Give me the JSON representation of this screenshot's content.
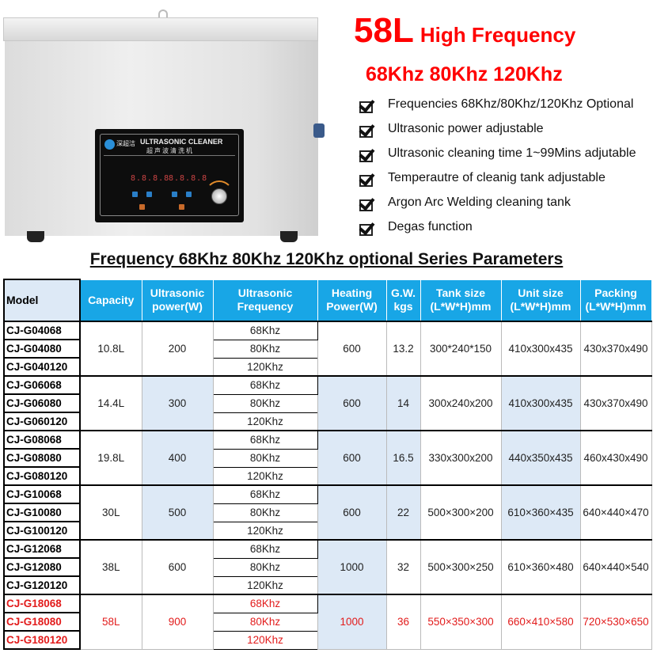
{
  "product": {
    "panel_title": "ULTRASONIC CLEANER",
    "panel_subtitle": "超声波清洗机",
    "brand": "深超洁",
    "accent_color": "#2a8fd8"
  },
  "headline": {
    "capacity": "58L",
    "label": "High Frequency",
    "frequencies": "68Khz 80Khz 120Khz",
    "color": "#ff0000"
  },
  "features": [
    "Frequencies 68Khz/80Khz/120Khz Optional",
    "Ultrasonic power adjustable",
    "Ultrasonic cleaning time 1~99Mins adjutable",
    "Temperautre of cleanig tank adjustable",
    "Argon Arc Welding cleaning tank",
    "Degas function"
  ],
  "section_title": "Frequency 68Khz 80Khz 120Khz optional Series Parameters",
  "table": {
    "header_color": "#18a6e6",
    "shade_color": "#dde9f6",
    "highlight_color": "#e21b1b",
    "columns": [
      "Model",
      "Capacity",
      "Ultrasonic power(W)",
      "Ultrasonic Frequency",
      "Heating Power(W)",
      "G.W. kgs",
      "Tank size (L*W*H)mm",
      "Unit size (L*W*H)mm",
      "Packing (L*W*H)mm"
    ],
    "groups": [
      {
        "models": [
          "CJ-G04068",
          "CJ-G04080",
          "CJ-G040120"
        ],
        "capacity": "10.8L",
        "power": "200",
        "frequencies": [
          "68Khz",
          "80Khz",
          "120Khz"
        ],
        "heating": "600",
        "gw": "13.2",
        "tank": "300*240*150",
        "unit": "410x300x435",
        "packing": "430x370x490",
        "shaded": [],
        "highlight": false
      },
      {
        "models": [
          "CJ-G06068",
          "CJ-G06080",
          "CJ-G060120"
        ],
        "capacity": "14.4L",
        "power": "300",
        "frequencies": [
          "68Khz",
          "80Khz",
          "120Khz"
        ],
        "heating": "600",
        "gw": "14",
        "tank": "300x240x200",
        "unit": "410x300x435",
        "packing": "430x370x490",
        "shaded": [
          "power",
          "heating",
          "gw",
          "unit"
        ],
        "highlight": false
      },
      {
        "models": [
          "CJ-G08068",
          "CJ-G08080",
          "CJ-G080120"
        ],
        "capacity": "19.8L",
        "power": "400",
        "frequencies": [
          "68Khz",
          "80Khz",
          "120Khz"
        ],
        "heating": "600",
        "gw": "16.5",
        "tank": "330x300x200",
        "unit": "440x350x435",
        "packing": "460x430x490",
        "shaded": [
          "power",
          "heating",
          "gw",
          "unit"
        ],
        "highlight": false
      },
      {
        "models": [
          "CJ-G10068",
          "CJ-G10080",
          "CJ-G100120"
        ],
        "capacity": "30L",
        "power": "500",
        "frequencies": [
          "68Khz",
          "80Khz",
          "120Khz"
        ],
        "heating": "600",
        "gw": "22",
        "tank": "500×300×200",
        "unit": "610×360×435",
        "packing": "640×440×470",
        "shaded": [
          "power",
          "heating",
          "gw",
          "unit"
        ],
        "highlight": false
      },
      {
        "models": [
          "CJ-G12068",
          "CJ-G12080",
          "CJ-G120120"
        ],
        "capacity": "38L",
        "power": "600",
        "frequencies": [
          "68Khz",
          "80Khz",
          "120Khz"
        ],
        "heating": "1000",
        "gw": "32",
        "tank": "500×300×250",
        "unit": "610×360×480",
        "packing": "640×440×540",
        "shaded": [
          "heating"
        ],
        "highlight": false
      },
      {
        "models": [
          "CJ-G18068",
          "CJ-G18080",
          "CJ-G180120"
        ],
        "capacity": "58L",
        "power": "900",
        "frequencies": [
          "68Khz",
          "80Khz",
          "120Khz"
        ],
        "heating": "1000",
        "gw": "36",
        "tank": "550×350×300",
        "unit": "660×410×580",
        "packing": "720×530×650",
        "shaded": [
          "heating"
        ],
        "highlight": true
      }
    ]
  }
}
